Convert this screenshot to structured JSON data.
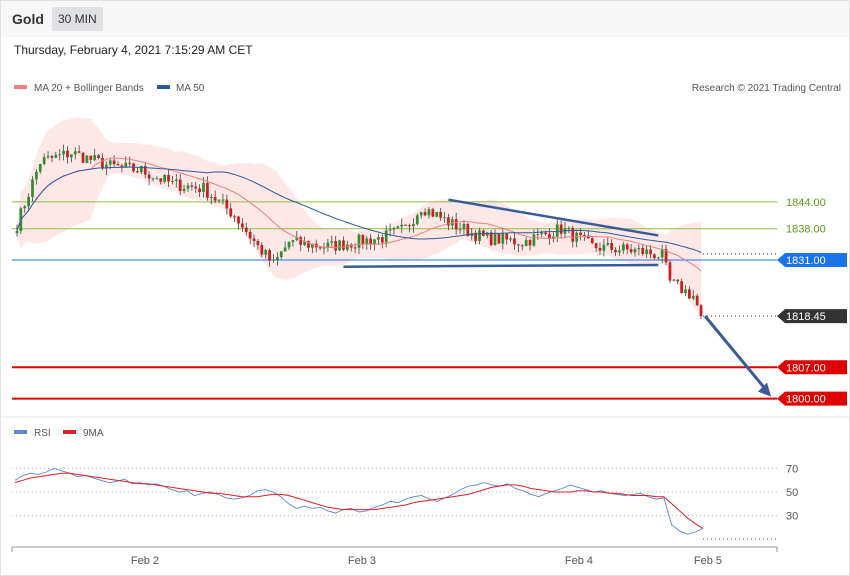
{
  "header": {
    "symbol": "Gold",
    "interval": "30 MIN"
  },
  "datetime": "Thursday, February 4, 2021 7:15:29 AM CET",
  "legend": {
    "ma20": "MA 20 + Bollinger Bands",
    "ma50": "MA 50",
    "ma20_color": "#f08080",
    "ma50_color": "#2c5aa0"
  },
  "credit": "Research © 2021 Trading Central",
  "rsi_legend": {
    "rsi": "RSI",
    "ma9": "9MA",
    "rsi_color": "#5b84d6",
    "ma9_color": "#e02020"
  },
  "chart_data": [
    {
      "type": "candlestick",
      "ylim": [
        1797,
        1863
      ],
      "x_ticks": [
        "Feb 2",
        "Feb 3",
        "Feb 4",
        "Feb 5"
      ],
      "levels": [
        {
          "label": "1844.00",
          "value": 1844.0,
          "kind": "resistance",
          "color": "#8cbf3f"
        },
        {
          "label": "1838.00",
          "value": 1838.0,
          "kind": "resistance",
          "color": "#8cbf3f"
        },
        {
          "label": "1831.00",
          "value": 1831.0,
          "kind": "pivot",
          "color": "#1a73e8"
        },
        {
          "label": "1818.45",
          "value": 1818.45,
          "kind": "last-price",
          "color": "#333333"
        },
        {
          "label": "1807.00",
          "value": 1807.0,
          "kind": "support",
          "color": "#e00000"
        },
        {
          "label": "1800.00",
          "value": 1800.0,
          "kind": "support",
          "color": "#e00000"
        }
      ],
      "pattern": "descending triangle",
      "target_arrow": {
        "from": 1818.45,
        "to": 1800.0
      }
    },
    {
      "type": "line",
      "name": "RSI",
      "ylim": [
        10,
        90
      ],
      "y_ticks": [
        70,
        50,
        30
      ],
      "series": [
        {
          "name": "RSI",
          "values": [
            60,
            64,
            66,
            65,
            67,
            70,
            68,
            66,
            63,
            64,
            62,
            60,
            58,
            59,
            61,
            57,
            58,
            56,
            57,
            55,
            52,
            50,
            51,
            47,
            49,
            50,
            48,
            45,
            44,
            45,
            47,
            51,
            52,
            50,
            46,
            40,
            36,
            38,
            36,
            37,
            34,
            32,
            35,
            36,
            33,
            34,
            37,
            39,
            42,
            41,
            44,
            46,
            47,
            44,
            42,
            45,
            48,
            52,
            55,
            56,
            58,
            56,
            55,
            57,
            53,
            51,
            48,
            46,
            49,
            51,
            53,
            56,
            54,
            52,
            50,
            51,
            49,
            48,
            47,
            48,
            49,
            46,
            44,
            45,
            22,
            17,
            14,
            16,
            19
          ]
        },
        {
          "name": "9MA",
          "values": [
            58,
            60,
            62,
            63,
            64,
            65,
            66,
            66,
            65,
            64,
            63,
            62,
            61,
            60,
            59,
            58,
            57,
            57,
            56,
            55,
            54,
            53,
            52,
            51,
            50,
            49,
            49,
            48,
            47,
            46,
            46,
            46,
            47,
            48,
            48,
            47,
            45,
            43,
            41,
            39,
            37,
            36,
            35,
            35,
            35,
            35,
            35,
            36,
            37,
            38,
            39,
            41,
            42,
            43,
            44,
            45,
            46,
            47,
            48,
            50,
            52,
            54,
            55,
            56,
            56,
            55,
            53,
            52,
            51,
            50,
            50,
            50,
            51,
            51,
            50,
            50,
            49,
            49,
            48,
            47,
            47,
            47,
            46,
            46,
            40,
            34,
            28,
            23,
            19
          ]
        }
      ]
    }
  ]
}
